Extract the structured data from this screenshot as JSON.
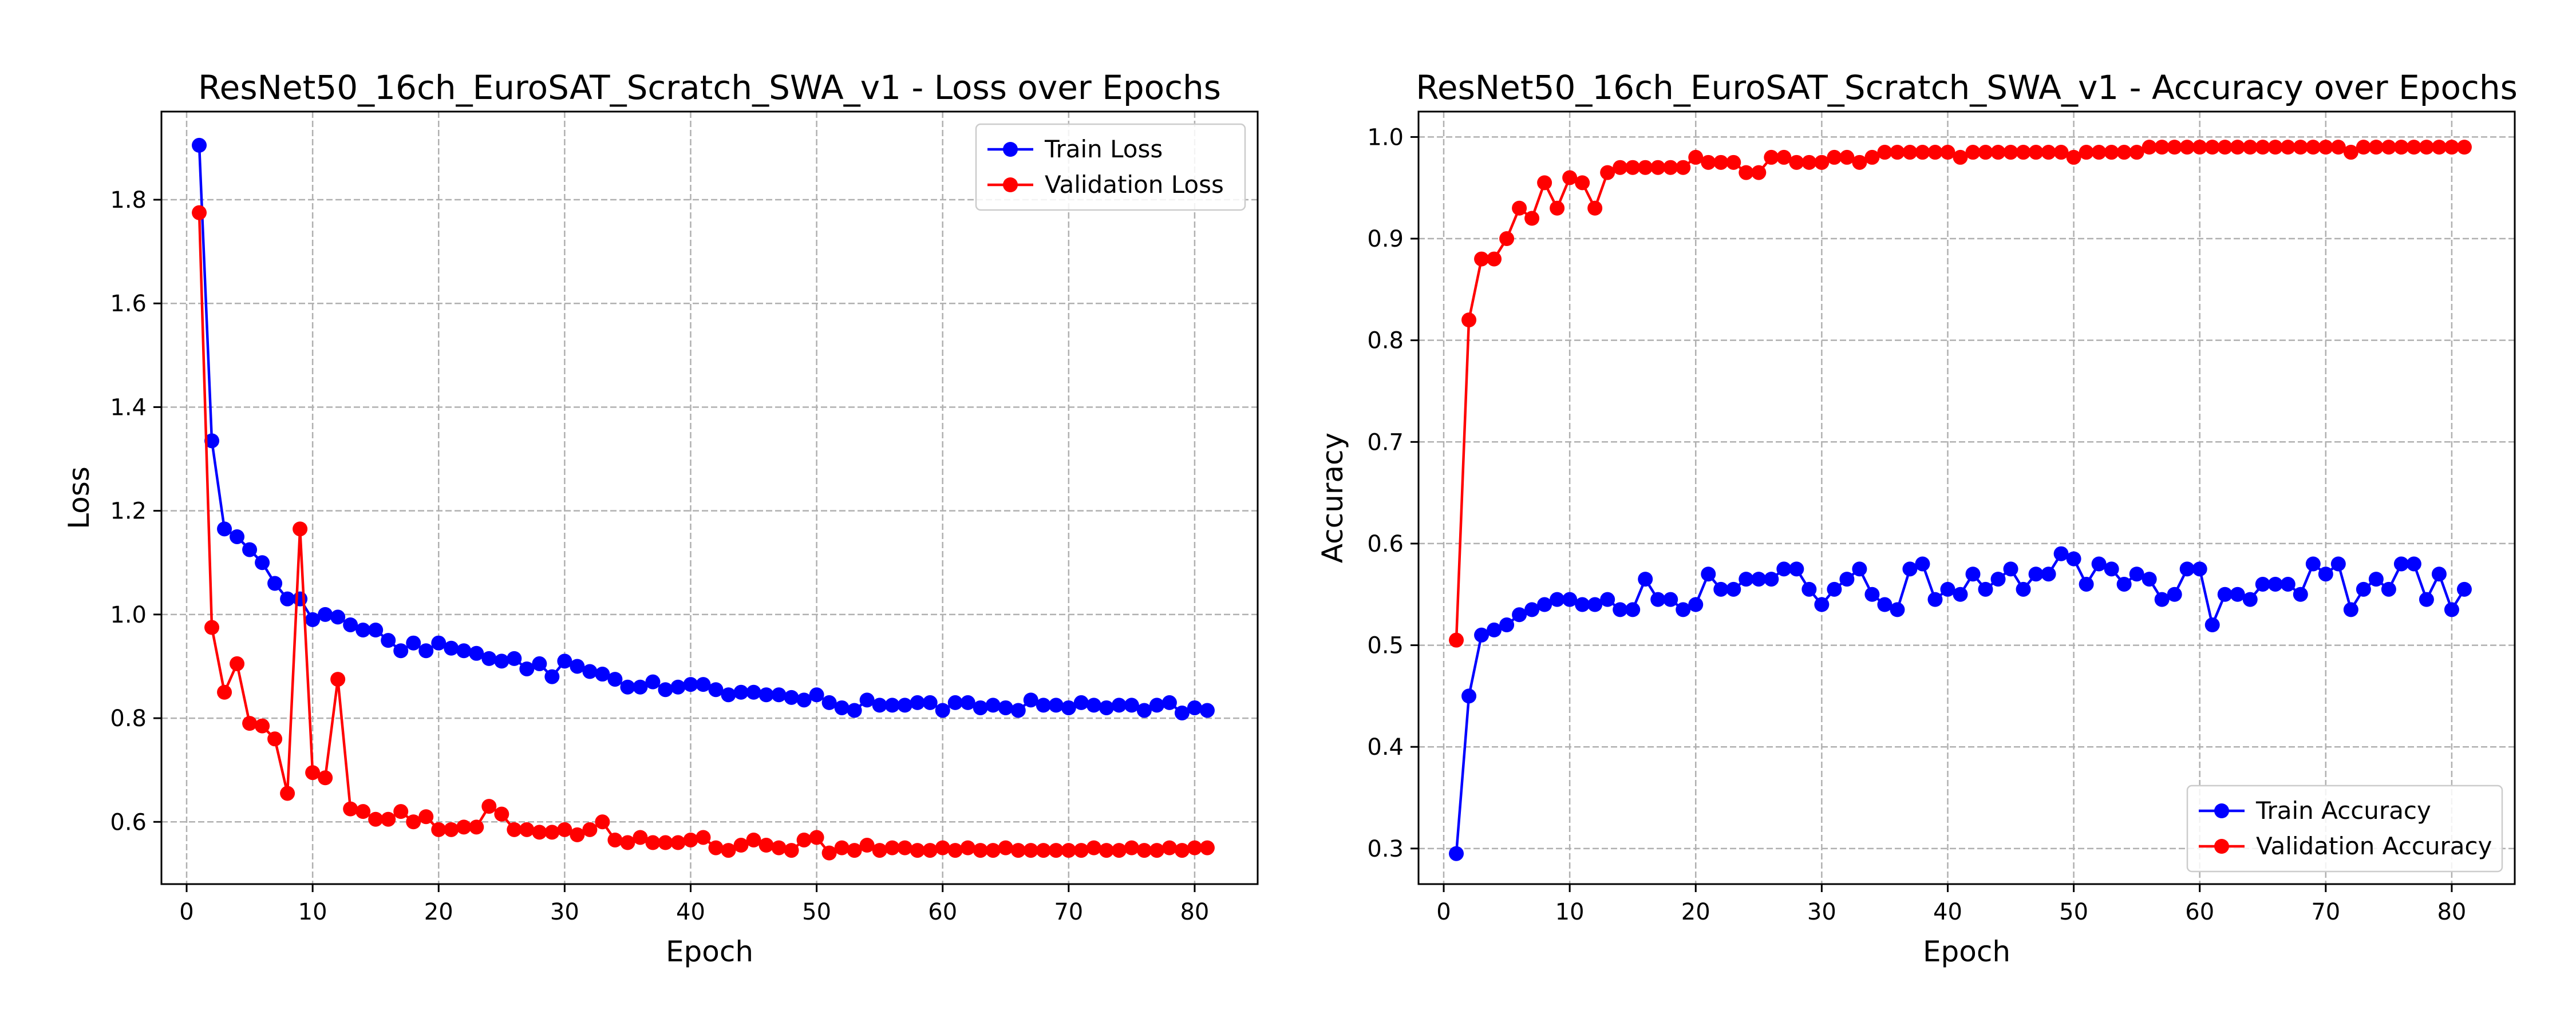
{
  "chart_data": [
    {
      "type": "line",
      "title": "ResNet50_16ch_EuroSAT_Scratch_SWA_v1 - Loss over Epochs",
      "xlabel": "Epoch",
      "ylabel": "Loss",
      "xlim": [
        -2,
        85
      ],
      "ylim": [
        0.48,
        1.97
      ],
      "xticks": [
        0,
        10,
        20,
        30,
        40,
        50,
        60,
        70,
        80
      ],
      "yticks": [
        0.6,
        0.8,
        1.0,
        1.2,
        1.4,
        1.6,
        1.8
      ],
      "ytick_decimals": 1,
      "grid": true,
      "legend": "top-right",
      "x_start": 1,
      "series": [
        {
          "name": "Train Loss",
          "color": "#0000ff",
          "values": [
            1.905,
            1.335,
            1.165,
            1.15,
            1.125,
            1.1,
            1.06,
            1.03,
            1.03,
            0.99,
            1.0,
            0.995,
            0.98,
            0.97,
            0.97,
            0.95,
            0.93,
            0.945,
            0.93,
            0.945,
            0.935,
            0.93,
            0.925,
            0.915,
            0.91,
            0.915,
            0.895,
            0.905,
            0.88,
            0.91,
            0.9,
            0.89,
            0.885,
            0.875,
            0.86,
            0.86,
            0.87,
            0.855,
            0.86,
            0.865,
            0.865,
            0.855,
            0.845,
            0.85,
            0.85,
            0.845,
            0.845,
            0.84,
            0.835,
            0.845,
            0.83,
            0.82,
            0.815,
            0.835,
            0.825,
            0.825,
            0.825,
            0.83,
            0.83,
            0.815,
            0.83,
            0.83,
            0.82,
            0.825,
            0.82,
            0.815,
            0.835,
            0.825,
            0.825,
            0.82,
            0.83,
            0.825,
            0.82,
            0.825,
            0.825,
            0.815,
            0.825,
            0.83,
            0.81,
            0.82,
            0.815
          ]
        },
        {
          "name": "Validation Loss",
          "color": "#ff0000",
          "values": [
            1.775,
            0.975,
            0.85,
            0.905,
            0.79,
            0.785,
            0.76,
            0.655,
            1.165,
            0.695,
            0.685,
            0.875,
            0.625,
            0.62,
            0.605,
            0.605,
            0.62,
            0.6,
            0.61,
            0.585,
            0.585,
            0.59,
            0.59,
            0.63,
            0.615,
            0.585,
            0.585,
            0.58,
            0.58,
            0.585,
            0.575,
            0.585,
            0.6,
            0.565,
            0.56,
            0.57,
            0.56,
            0.56,
            0.56,
            0.565,
            0.57,
            0.55,
            0.545,
            0.555,
            0.565,
            0.555,
            0.55,
            0.545,
            0.565,
            0.57,
            0.54,
            0.55,
            0.545,
            0.555,
            0.545,
            0.55,
            0.55,
            0.545,
            0.545,
            0.55,
            0.545,
            0.55,
            0.545,
            0.545,
            0.55,
            0.545,
            0.545,
            0.545,
            0.545,
            0.545,
            0.545,
            0.55,
            0.545,
            0.545,
            0.55,
            0.545,
            0.545,
            0.55,
            0.545,
            0.55,
            0.55
          ]
        }
      ]
    },
    {
      "type": "line",
      "title": "ResNet50_16ch_EuroSAT_Scratch_SWA_v1 - Accuracy over Epochs",
      "xlabel": "Epoch",
      "ylabel": "Accuracy",
      "xlim": [
        -2,
        85
      ],
      "ylim": [
        0.265,
        1.025
      ],
      "xticks": [
        0,
        10,
        20,
        30,
        40,
        50,
        60,
        70,
        80
      ],
      "yticks": [
        0.3,
        0.4,
        0.5,
        0.6,
        0.7,
        0.8,
        0.9,
        1.0
      ],
      "ytick_decimals": 1,
      "grid": true,
      "legend": "bottom-right",
      "x_start": 1,
      "series": [
        {
          "name": "Train Accuracy",
          "color": "#0000ff",
          "values": [
            0.295,
            0.45,
            0.51,
            0.515,
            0.52,
            0.53,
            0.535,
            0.54,
            0.545,
            0.545,
            0.54,
            0.54,
            0.545,
            0.535,
            0.535,
            0.565,
            0.545,
            0.545,
            0.535,
            0.54,
            0.57,
            0.555,
            0.555,
            0.565,
            0.565,
            0.565,
            0.575,
            0.575,
            0.555,
            0.54,
            0.555,
            0.565,
            0.575,
            0.55,
            0.54,
            0.535,
            0.575,
            0.58,
            0.545,
            0.555,
            0.55,
            0.57,
            0.555,
            0.565,
            0.575,
            0.555,
            0.57,
            0.57,
            0.59,
            0.585,
            0.56,
            0.58,
            0.575,
            0.56,
            0.57,
            0.565,
            0.545,
            0.55,
            0.575,
            0.575,
            0.52,
            0.55,
            0.55,
            0.545,
            0.56,
            0.56,
            0.56,
            0.55,
            0.58,
            0.57,
            0.58,
            0.535,
            0.555,
            0.565,
            0.555,
            0.58,
            0.58,
            0.545,
            0.57,
            0.535,
            0.555
          ]
        },
        {
          "name": "Validation Accuracy",
          "color": "#ff0000",
          "values": [
            0.505,
            0.82,
            0.88,
            0.88,
            0.9,
            0.93,
            0.92,
            0.955,
            0.93,
            0.96,
            0.955,
            0.93,
            0.965,
            0.97,
            0.97,
            0.97,
            0.97,
            0.97,
            0.97,
            0.98,
            0.975,
            0.975,
            0.975,
            0.965,
            0.965,
            0.98,
            0.98,
            0.975,
            0.975,
            0.975,
            0.98,
            0.98,
            0.975,
            0.98,
            0.985,
            0.985,
            0.985,
            0.985,
            0.985,
            0.985,
            0.98,
            0.985,
            0.985,
            0.985,
            0.985,
            0.985,
            0.985,
            0.985,
            0.985,
            0.98,
            0.985,
            0.985,
            0.985,
            0.985,
            0.985,
            0.99,
            0.99,
            0.99,
            0.99,
            0.99,
            0.99,
            0.99,
            0.99,
            0.99,
            0.99,
            0.99,
            0.99,
            0.99,
            0.99,
            0.99,
            0.99,
            0.985,
            0.99,
            0.99,
            0.99,
            0.99,
            0.99,
            0.99,
            0.99,
            0.99,
            0.99
          ]
        }
      ]
    }
  ]
}
